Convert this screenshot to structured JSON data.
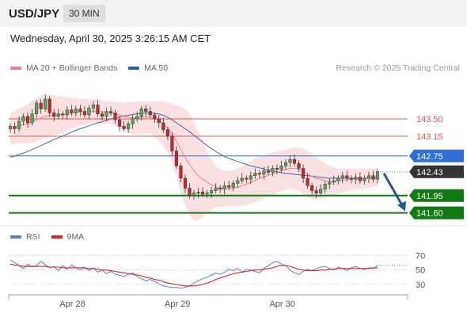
{
  "header": {
    "symbol": "USD/JPY",
    "timeframe": "30 MIN"
  },
  "datetime": "Wednesday, April 30, 2025 3:26:15 AM CET",
  "legend": {
    "items": [
      {
        "label": "MA 20 + Bollinger Bands",
        "color": "#f08080"
      },
      {
        "label": "MA 50",
        "color": "#2e5fa3"
      }
    ],
    "research": "Research © 2025 Trading Central"
  },
  "rsi_legend": {
    "items": [
      {
        "label": "RSI",
        "color": "#5b7fd6"
      },
      {
        "label": "9MA",
        "color": "#dd2222"
      }
    ]
  },
  "colors": {
    "resistance": "#e05555",
    "current": "#2f6fd6",
    "support": "#127a12",
    "bull": "#4caf50",
    "bear": "#c62828",
    "arrow": "#27558f",
    "band": "#fadadd"
  },
  "chart_data": [
    {
      "type": "candlestick",
      "title": "USD/JPY",
      "ylim": [
        141.45,
        144.3
      ],
      "x_labels": [
        "Apr 28",
        "Apr 29",
        "Apr 30"
      ],
      "levels": [
        {
          "label": "143.50",
          "value": 143.5,
          "kind": "resistance"
        },
        {
          "label": "143.15",
          "value": 143.15,
          "kind": "resistance"
        },
        {
          "label": "142.75",
          "value": 142.75,
          "kind": "current"
        },
        {
          "label": "142.43",
          "value": 142.43,
          "kind": "last"
        },
        {
          "label": "141.95",
          "value": 141.95,
          "kind": "support"
        },
        {
          "label": "141.60",
          "value": 141.6,
          "kind": "support"
        }
      ],
      "projection": {
        "from": 142.43,
        "to": 141.6,
        "direction": "down"
      },
      "close": [
        143.35,
        143.3,
        143.45,
        143.55,
        143.42,
        143.6,
        143.82,
        143.7,
        143.9,
        143.62,
        143.55,
        143.6,
        143.58,
        143.68,
        143.62,
        143.7,
        143.65,
        143.58,
        143.72,
        143.78,
        143.6,
        143.55,
        143.65,
        143.62,
        143.48,
        143.35,
        143.3,
        143.4,
        143.5,
        143.55,
        143.7,
        143.65,
        143.58,
        143.5,
        143.42,
        143.28,
        143.15,
        142.85,
        142.55,
        142.3,
        142.1,
        141.95,
        142.0,
        142.02,
        141.98,
        142.0,
        142.05,
        142.1,
        142.08,
        142.15,
        142.12,
        142.2,
        142.25,
        142.3,
        142.28,
        142.35,
        142.4,
        142.38,
        142.45,
        142.42,
        142.5,
        142.48,
        142.55,
        142.62,
        142.68,
        142.6,
        142.5,
        142.3,
        142.15,
        142.05,
        142.0,
        142.08,
        142.18,
        142.22,
        142.25,
        142.3,
        142.35,
        142.3,
        142.28,
        142.32,
        142.25,
        142.3,
        142.35,
        142.28,
        142.43
      ],
      "ma20": [
        143.3,
        143.32,
        143.35,
        143.38,
        143.4,
        143.44,
        143.48,
        143.52,
        143.55,
        143.56,
        143.57,
        143.58,
        143.58,
        143.6,
        143.62,
        143.63,
        143.64,
        143.64,
        143.65,
        143.66,
        143.65,
        143.64,
        143.63,
        143.62,
        143.6,
        143.58,
        143.55,
        143.53,
        143.52,
        143.52,
        143.53,
        143.54,
        143.53,
        143.5,
        143.46,
        143.4,
        143.32,
        143.2,
        143.05,
        142.88,
        142.72,
        142.58,
        142.45,
        142.35,
        142.28,
        142.22,
        142.17,
        142.13,
        142.1,
        142.09,
        142.09,
        142.1,
        142.12,
        142.15,
        142.18,
        142.22,
        142.26,
        142.3,
        142.33,
        142.36,
        142.39,
        142.42,
        142.45,
        142.48,
        142.5,
        142.5,
        142.48,
        142.44,
        142.39,
        142.34,
        142.3,
        142.27,
        142.25,
        142.24,
        142.24,
        142.25,
        142.26,
        142.27,
        142.28,
        142.29,
        142.29,
        142.3,
        142.3,
        142.31,
        142.32
      ],
      "bb_upper": [
        143.62,
        143.66,
        143.7,
        143.75,
        143.8,
        143.86,
        143.92,
        143.96,
        143.98,
        143.98,
        143.97,
        143.96,
        143.95,
        143.94,
        143.93,
        143.92,
        143.91,
        143.9,
        143.9,
        143.9,
        143.9,
        143.88,
        143.86,
        143.85,
        143.84,
        143.83,
        143.83,
        143.84,
        143.85,
        143.85,
        143.86,
        143.86,
        143.86,
        143.86,
        143.86,
        143.85,
        143.83,
        143.8,
        143.78,
        143.75,
        143.7,
        143.6,
        143.45,
        143.25,
        143.05,
        142.85,
        142.68,
        142.55,
        142.48,
        142.45,
        142.45,
        142.46,
        142.5,
        142.55,
        142.6,
        142.65,
        142.7,
        142.74,
        142.77,
        142.8,
        142.82,
        142.84,
        142.86,
        142.88,
        142.9,
        142.92,
        142.92,
        142.9,
        142.85,
        142.8,
        142.72,
        142.65,
        142.6,
        142.55,
        142.52,
        142.5,
        142.5,
        142.5,
        142.5,
        142.5,
        142.5,
        142.5,
        142.5,
        142.5,
        142.5
      ],
      "bb_lower": [
        142.98,
        142.98,
        143.0,
        143.01,
        143.0,
        143.02,
        143.04,
        143.08,
        143.12,
        143.14,
        143.17,
        143.2,
        143.21,
        143.26,
        143.31,
        143.34,
        143.37,
        143.38,
        143.4,
        143.42,
        143.4,
        143.4,
        143.4,
        143.39,
        143.36,
        143.33,
        143.27,
        143.22,
        143.19,
        143.19,
        143.2,
        143.22,
        143.2,
        143.14,
        143.06,
        142.95,
        142.81,
        142.6,
        142.32,
        142.01,
        141.74,
        141.56,
        141.45,
        141.45,
        141.51,
        141.59,
        141.66,
        141.71,
        141.72,
        141.73,
        141.73,
        141.74,
        141.74,
        141.75,
        141.76,
        141.79,
        141.82,
        141.86,
        141.89,
        141.92,
        141.96,
        142.0,
        142.04,
        142.08,
        142.1,
        142.08,
        142.04,
        141.98,
        141.93,
        141.88,
        141.88,
        141.89,
        141.9,
        141.93,
        141.96,
        142.0,
        142.02,
        142.04,
        142.06,
        142.08,
        142.08,
        142.1,
        142.1,
        142.12,
        142.14
      ],
      "ma50": [
        142.72,
        142.75,
        142.78,
        142.81,
        142.84,
        142.88,
        142.92,
        142.96,
        143.0,
        143.04,
        143.08,
        143.12,
        143.15,
        143.19,
        143.23,
        143.27,
        143.3,
        143.33,
        143.36,
        143.39,
        143.42,
        143.44,
        143.47,
        143.5,
        143.52,
        143.54,
        143.56,
        143.57,
        143.59,
        143.6,
        143.61,
        143.62,
        143.62,
        143.61,
        143.6,
        143.57,
        143.53,
        143.48,
        143.42,
        143.36,
        143.3,
        143.24,
        143.17,
        143.1,
        143.03,
        142.96,
        142.9,
        142.84,
        142.79,
        142.74,
        142.7,
        142.67,
        142.64,
        142.61,
        142.58,
        142.55,
        142.53,
        142.51,
        142.49,
        142.47,
        142.45,
        142.43,
        142.41,
        142.4,
        142.39,
        142.38,
        142.37,
        142.36,
        142.35,
        142.34,
        142.33,
        142.32,
        142.31,
        142.3,
        142.3,
        142.3,
        142.3,
        142.3,
        142.3,
        142.3,
        142.3,
        142.3,
        142.3,
        142.3,
        142.3
      ]
    },
    {
      "type": "line",
      "title": "RSI",
      "ylim": [
        18,
        78
      ],
      "y_ticks": [
        70,
        50,
        30
      ],
      "rsi": [
        64,
        60,
        56,
        52,
        58,
        54,
        56,
        62,
        57,
        53,
        55,
        49,
        56,
        51,
        57,
        53,
        50,
        54,
        49,
        53,
        47,
        50,
        45,
        48,
        44,
        43,
        41,
        44,
        46,
        41,
        38,
        35,
        37,
        34,
        31,
        28,
        27,
        26,
        26,
        25,
        26,
        28,
        32,
        35,
        38,
        40,
        43,
        46,
        44,
        47,
        51,
        49,
        52,
        47,
        51,
        50,
        48,
        46,
        52,
        56,
        60,
        62,
        58,
        56,
        50,
        46,
        44,
        48,
        51,
        49,
        52,
        54,
        55,
        52,
        50,
        54,
        52,
        49,
        53,
        55,
        52,
        51,
        53,
        52,
        56
      ],
      "ma9": [
        58,
        57,
        56,
        55,
        55,
        55,
        55,
        55,
        55,
        54,
        54,
        54,
        53,
        53,
        53,
        53,
        53,
        53,
        52,
        52,
        51,
        50,
        50,
        49,
        48,
        47,
        46,
        45,
        44,
        43,
        42,
        40,
        39,
        37,
        36,
        34,
        32,
        31,
        30,
        29,
        28,
        28,
        28,
        29,
        30,
        32,
        34,
        37,
        39,
        41,
        43,
        45,
        46,
        47,
        48,
        49,
        50,
        50,
        51,
        52,
        53,
        55,
        56,
        56,
        55,
        53,
        51,
        50,
        49,
        49,
        49,
        50,
        50,
        51,
        51,
        52,
        52,
        52,
        52,
        52,
        52,
        52,
        52,
        53,
        53
      ]
    }
  ]
}
